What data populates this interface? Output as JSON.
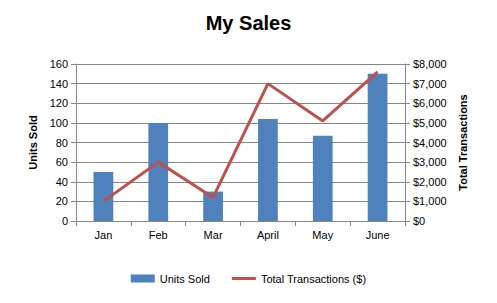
{
  "chart_data": {
    "type": "bar",
    "title": "My Sales",
    "categories": [
      "Jan",
      "Feb",
      "Mar",
      "April",
      "May",
      "June"
    ],
    "ylabel": "Units Sold",
    "y2label": "Total Transactions",
    "ylim": [
      0,
      160
    ],
    "yticks": [
      0,
      20,
      40,
      60,
      80,
      100,
      120,
      140,
      160
    ],
    "y2lim": [
      0,
      8000
    ],
    "y2ticks": [
      {
        "value": 0,
        "label": "$0"
      },
      {
        "value": 1000,
        "label": "$1,000"
      },
      {
        "value": 2000,
        "label": "$2,000"
      },
      {
        "value": 3000,
        "label": "$3,000"
      },
      {
        "value": 4000,
        "label": "$4,000"
      },
      {
        "value": 5000,
        "label": "$5,000"
      },
      {
        "value": 6000,
        "label": "$6,000"
      },
      {
        "value": 7000,
        "label": "$7,000"
      },
      {
        "value": 8000,
        "label": "$8,000"
      }
    ],
    "grid": true,
    "legend": "bottom",
    "series": [
      {
        "name": "Units Sold",
        "type": "bar",
        "color": "#4f81bd",
        "values": [
          50,
          100,
          30,
          104,
          87,
          150
        ]
      },
      {
        "name": "Total Transactions ($)",
        "type": "line",
        "axis": "y2",
        "color": "#c0504d",
        "values": [
          1000,
          3000,
          1200,
          7000,
          5100,
          7600
        ]
      }
    ]
  }
}
